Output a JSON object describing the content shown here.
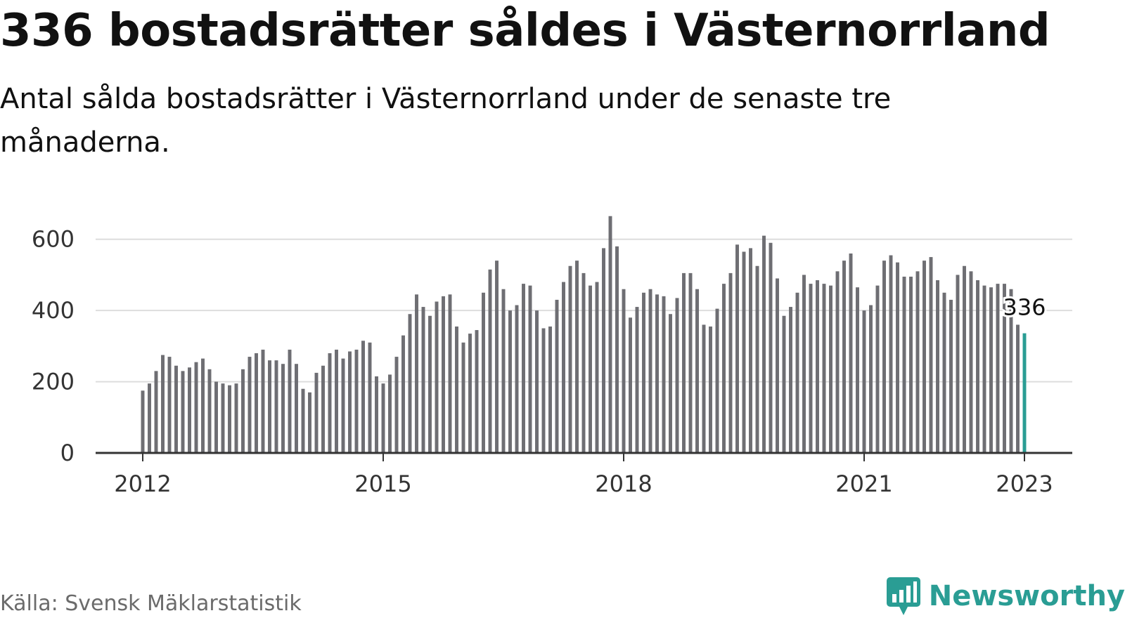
{
  "title": "336 bostadsrätter såldes i Västernorrland",
  "subtitle": "Antal sålda bostadsrätter i Västernorrland under de senaste tre månaderna.",
  "source": "Källa: Svensk Mäklarstatistik",
  "brand": {
    "name": "Newsworthy",
    "icon": "newsworthy-logo-icon"
  },
  "colors": {
    "bar": "#6e6e73",
    "highlight": "#2a9d94",
    "grid": "#dddddd",
    "axis": "#333333"
  },
  "chart_data": {
    "type": "bar",
    "start": "2012-01",
    "ylim": [
      0,
      700
    ],
    "yticks": [
      0,
      200,
      400,
      600
    ],
    "xticks": [
      {
        "label": "2012",
        "index": 0
      },
      {
        "label": "2015",
        "index": 36
      },
      {
        "label": "2018",
        "index": 72
      },
      {
        "label": "2021",
        "index": 108
      },
      {
        "label": "2023",
        "index": 132
      }
    ],
    "grid": true,
    "highlight": {
      "index": 132,
      "value": 336,
      "label": "336"
    },
    "values": [
      175,
      195,
      230,
      275,
      270,
      245,
      230,
      240,
      255,
      265,
      235,
      200,
      195,
      190,
      195,
      235,
      270,
      280,
      290,
      260,
      260,
      250,
      290,
      250,
      180,
      170,
      225,
      245,
      280,
      290,
      265,
      285,
      290,
      315,
      310,
      215,
      195,
      220,
      270,
      330,
      390,
      445,
      410,
      385,
      425,
      440,
      445,
      355,
      310,
      335,
      345,
      450,
      515,
      540,
      460,
      400,
      415,
      475,
      470,
      400,
      350,
      355,
      430,
      480,
      525,
      540,
      505,
      470,
      480,
      575,
      665,
      580,
      460,
      380,
      410,
      450,
      460,
      445,
      440,
      390,
      435,
      505,
      505,
      460,
      360,
      355,
      405,
      475,
      505,
      585,
      565,
      575,
      525,
      610,
      590,
      490,
      385,
      410,
      450,
      500,
      475,
      485,
      475,
      470,
      510,
      540,
      560,
      465,
      400,
      415,
      470,
      540,
      555,
      535,
      495,
      495,
      510,
      540,
      550,
      485,
      450,
      430,
      500,
      525,
      510,
      485,
      470,
      465,
      475,
      475,
      460,
      360,
      336
    ]
  }
}
